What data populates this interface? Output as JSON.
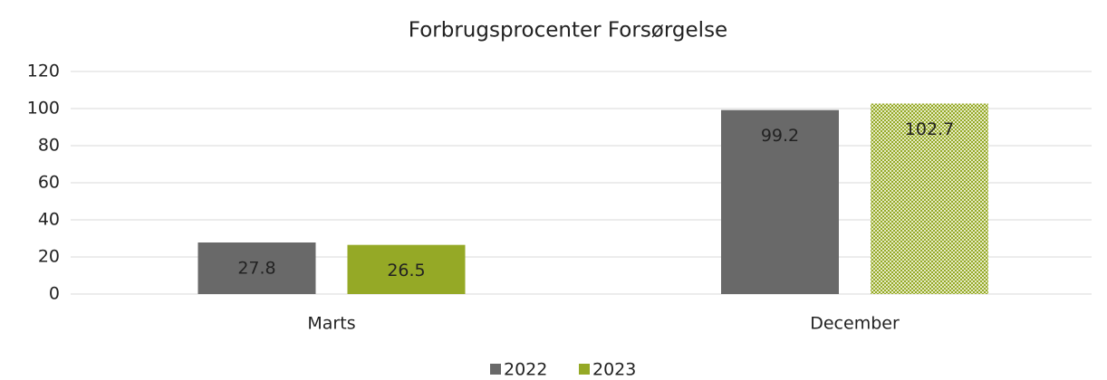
{
  "chart_data": {
    "type": "bar",
    "title": "Forbrugsprocenter Forsørgelse",
    "categories": [
      "Marts",
      "December"
    ],
    "series": [
      {
        "name": "2022",
        "color": "#696969",
        "values": [
          27.8,
          99.2
        ]
      },
      {
        "name": "2023",
        "color": "#95a926",
        "values": [
          26.5,
          102.7
        ],
        "hatched": [
          false,
          true
        ]
      }
    ],
    "ylim": [
      0,
      120
    ],
    "yticks": [
      0,
      20,
      40,
      60,
      80,
      100,
      120
    ],
    "grid": true,
    "legend": "bottom"
  }
}
